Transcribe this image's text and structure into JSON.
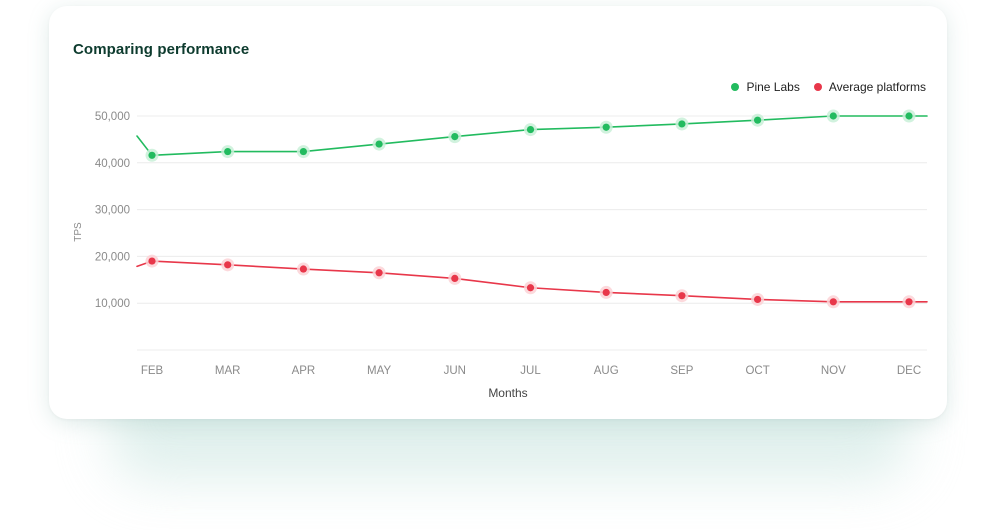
{
  "card": {
    "title": "Comparing performance"
  },
  "colors": {
    "pine_labs": "#22bb5f",
    "pine_labs_halo": "#c9f0d8",
    "average": "#e8374a",
    "average_halo": "#fbd2d6",
    "grid": "#ececec",
    "title": "#0d3b2e"
  },
  "chart_data": {
    "type": "line",
    "title": "Comparing performance",
    "xlabel": "Months",
    "ylabel": "TPS",
    "categories": [
      "FEB",
      "MAR",
      "APR",
      "MAY",
      "JUN",
      "JUL",
      "AUG",
      "SEP",
      "OCT",
      "NOV",
      "DEC"
    ],
    "y_ticks": [
      10000,
      20000,
      30000,
      40000,
      50000
    ],
    "y_tick_labels": [
      "10,000",
      "20,000",
      "30,000",
      "40,000",
      "50,000"
    ],
    "ylim": [
      0,
      50000
    ],
    "grid": true,
    "legend_position": "top-right",
    "series": [
      {
        "name": "Pine Labs",
        "color": "#22bb5f",
        "values": [
          41600,
          42400,
          42400,
          44000,
          45600,
          47100,
          47600,
          48300,
          49100,
          50000,
          50000
        ]
      },
      {
        "name": "Average platforms",
        "color": "#e8374a",
        "values": [
          19000,
          18200,
          17300,
          16500,
          15300,
          13300,
          12300,
          11600,
          10800,
          10300,
          10300
        ]
      }
    ]
  }
}
